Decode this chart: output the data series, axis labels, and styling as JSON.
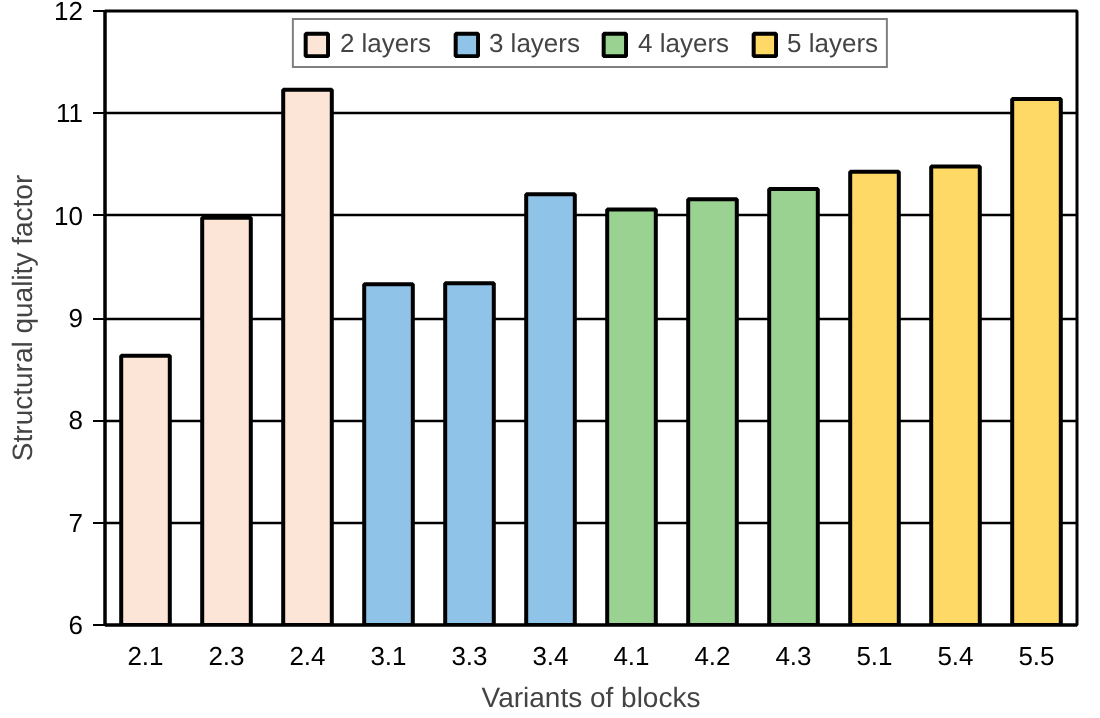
{
  "chart_data": {
    "type": "bar",
    "xlabel": "Variants of blocks",
    "ylabel": "Structural quality factor",
    "categories": [
      "2.1",
      "2.3",
      "2.4",
      "3.1",
      "3.3",
      "3.4",
      "4.1",
      "4.2",
      "4.3",
      "5.1",
      "5.4",
      "5.5"
    ],
    "series": [
      {
        "name": "2 layers",
        "color": "#fce4d6",
        "values": [
          8.63,
          9.98,
          11.23,
          null,
          null,
          null,
          null,
          null,
          null,
          null,
          null,
          null
        ]
      },
      {
        "name": "3 layers",
        "color": "#8fc3e8",
        "values": [
          null,
          null,
          null,
          9.33,
          9.34,
          10.21,
          null,
          null,
          null,
          null,
          null,
          null
        ]
      },
      {
        "name": "4 layers",
        "color": "#9ad391",
        "values": [
          null,
          null,
          null,
          null,
          null,
          null,
          10.06,
          10.16,
          10.26,
          null,
          null,
          null
        ]
      },
      {
        "name": "5 layers",
        "color": "#ffd966",
        "values": [
          null,
          null,
          null,
          null,
          null,
          null,
          null,
          null,
          null,
          10.43,
          10.48,
          11.14
        ]
      }
    ],
    "ylim": [
      6,
      12
    ],
    "yticks": [
      6,
      7,
      8,
      9,
      10,
      11,
      12
    ],
    "grid": "y",
    "legend": "top"
  }
}
